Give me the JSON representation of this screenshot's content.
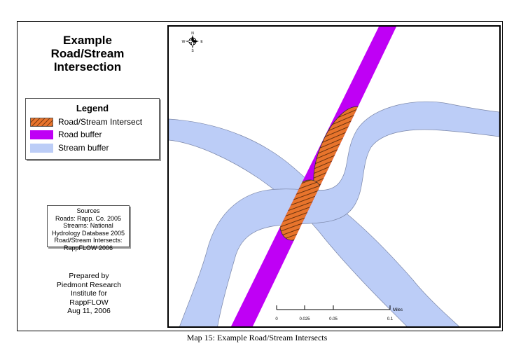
{
  "title": {
    "line1": "Example",
    "line2": "Road/Stream",
    "line3": "Intersection"
  },
  "legend": {
    "title": "Legend",
    "items": [
      {
        "label": "Road/Stream Intersect",
        "color": "#e8742c",
        "pattern": "hatched"
      },
      {
        "label": "Road buffer",
        "color": "#bf00f5"
      },
      {
        "label": "Stream buffer",
        "color": "#bccdf7"
      }
    ]
  },
  "sources": {
    "lines": [
      "Sources",
      "Roads: Rapp. Co. 2005",
      "Streams: National",
      "Hydrology Database 2005",
      "Road/Stream Intersects:",
      "RappFLOW 2006"
    ]
  },
  "prepared": {
    "lines": [
      "Prepared by",
      "Piedmont Research",
      "Institute for",
      "RappFLOW",
      "Aug 11, 2006"
    ]
  },
  "north_arrow": {
    "n": "N",
    "s": "S",
    "e": "E",
    "w": "W"
  },
  "scale_bar": {
    "ticks": [
      "0",
      "0.025",
      "0.05",
      "0.1"
    ],
    "unit": "Miles"
  },
  "caption": "Map 15: Example Road/Stream Intersects",
  "colors": {
    "road": "#bf00f5",
    "stream": "#bccdf7",
    "intersect": "#e8742c"
  }
}
